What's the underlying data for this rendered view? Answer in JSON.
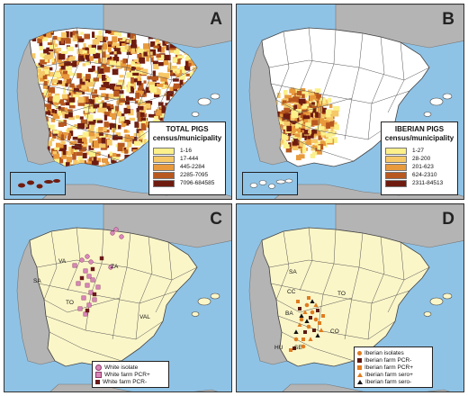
{
  "panels": {
    "A": {
      "label": "A",
      "legend_title_1": "TOTAL PIGS",
      "legend_title_2": "census/municipality",
      "classes": [
        {
          "label": "1-16",
          "color": "#fbf08a"
        },
        {
          "label": "17-444",
          "color": "#f6c867"
        },
        {
          "label": "445-2284",
          "color": "#e89a3c"
        },
        {
          "label": "2285-7095",
          "color": "#b8581f"
        },
        {
          "label": "7096-684585",
          "color": "#6f1c10"
        }
      ]
    },
    "B": {
      "label": "B",
      "legend_title_1": "IBERIAN PIGS",
      "legend_title_2": "census/municipality",
      "classes": [
        {
          "label": "1-27",
          "color": "#fbf08a"
        },
        {
          "label": "28-200",
          "color": "#f6c867"
        },
        {
          "label": "201-623",
          "color": "#e89a3c"
        },
        {
          "label": "624-2310",
          "color": "#b8581f"
        },
        {
          "label": "2311-84513",
          "color": "#6f1c10"
        }
      ]
    },
    "C": {
      "label": "C",
      "city_labels": {
        "VA": "VA",
        "ZA": "ZA",
        "SA": "SA",
        "TO": "TO",
        "VAL": "VAL"
      },
      "legend": [
        {
          "label": "White isolate",
          "shape": "circle",
          "color": "#d987b8"
        },
        {
          "label": "White farm PCR+",
          "shape": "square",
          "color": "#d987b8"
        },
        {
          "label": "White farm PCR-",
          "shape": "square",
          "color": "#6b1a1a"
        }
      ]
    },
    "D": {
      "label": "D",
      "city_labels": {
        "SA": "SA",
        "CC": "CC",
        "TO": "TO",
        "BA": "BA",
        "CO": "CO",
        "HU": "HU",
        "SE": "SE"
      },
      "legend": [
        {
          "label": "Iberian isolates",
          "shape": "circle",
          "color": "#e07c1f"
        },
        {
          "label": "Iberian farm PCR-",
          "shape": "square",
          "color": "#5c1a12"
        },
        {
          "label": "Iberian farm PCR+",
          "shape": "square",
          "color": "#e07c1f"
        },
        {
          "label": "Iberian farm sero+",
          "shape": "triangle",
          "color": "#e07c1f"
        },
        {
          "label": "Iberian farm sero-",
          "shape": "triangle",
          "color": "#111111"
        }
      ]
    }
  },
  "colors": {
    "sea": "#8fc3e6",
    "land_spain": "#fbf6c8",
    "land_other": "#b4b4b4",
    "province_border": "#555555"
  }
}
